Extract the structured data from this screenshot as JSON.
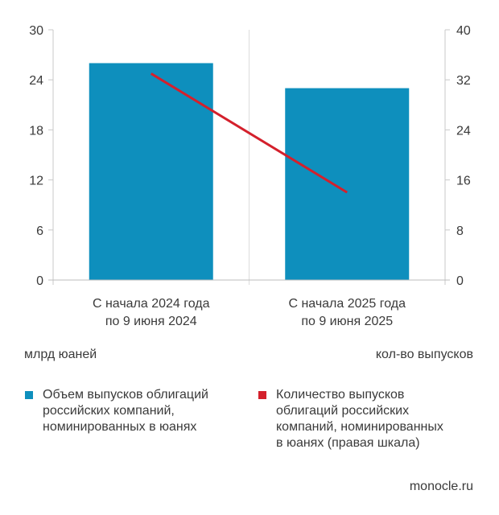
{
  "chart_data": {
    "type": "bar",
    "categories": [
      "С начала 2024 года\nпо 9 июня 2024",
      "С начала 2025 года\nпо 9 июня 2025"
    ],
    "series": [
      {
        "name": "Объем выпусков облигаций российских компаний, номинированных в юанях",
        "kind": "bar",
        "axis": "left",
        "color": "#0e8fbd",
        "values": [
          26,
          23
        ]
      },
      {
        "name": "Количество выпусков облигаций российских компаний, номинированных в юанях (правая шкала)",
        "kind": "line",
        "axis": "right",
        "color": "#d4202c",
        "values": [
          33,
          14
        ]
      }
    ],
    "y_left": {
      "label": "млрд юаней",
      "ticks": [
        "0",
        "6",
        "12",
        "18",
        "24",
        "30"
      ],
      "ylim": [
        0,
        30
      ]
    },
    "y_right": {
      "label": "кол-во выпусков",
      "ticks": [
        "0",
        "8",
        "16",
        "24",
        "32",
        "40"
      ],
      "ylim": [
        0,
        40
      ]
    },
    "grid": "vertical category separators",
    "legend_position": "bottom"
  },
  "legend": {
    "bars_label": "Объем выпусков облигаций\nроссийских компаний,\nноминированных в юанях",
    "line_label": "Количество выпусков\nоблигаций российских\nкомпаний, номинированных\nв юанях (правая шкала)"
  },
  "source": "monocle.ru"
}
